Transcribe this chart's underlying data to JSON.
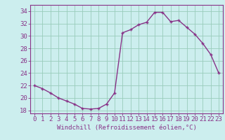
{
  "x": [
    0,
    1,
    2,
    3,
    4,
    5,
    6,
    7,
    8,
    9,
    10,
    11,
    12,
    13,
    14,
    15,
    16,
    17,
    18,
    19,
    20,
    21,
    22,
    23
  ],
  "y": [
    22,
    21.5,
    20.8,
    20.0,
    19.5,
    19.0,
    18.3,
    18.2,
    18.3,
    19.0,
    20.8,
    30.5,
    31.0,
    31.8,
    32.2,
    33.8,
    33.8,
    32.3,
    32.5,
    31.4,
    30.3,
    28.8,
    27.0,
    24.0
  ],
  "line_color": "#883388",
  "marker": "+",
  "bg_color": "#cceeee",
  "grid_color": "#99ccbb",
  "xlabel": "Windchill (Refroidissement éolien,°C)",
  "ylim": [
    17.5,
    35
  ],
  "xlim": [
    -0.5,
    23.5
  ],
  "yticks": [
    18,
    20,
    22,
    24,
    26,
    28,
    30,
    32,
    34
  ],
  "xticks": [
    0,
    1,
    2,
    3,
    4,
    5,
    6,
    7,
    8,
    9,
    10,
    11,
    12,
    13,
    14,
    15,
    16,
    17,
    18,
    19,
    20,
    21,
    22,
    23
  ],
  "axis_color": "#883388",
  "tick_label_color": "#883388",
  "xlabel_color": "#883388",
  "xlabel_fontsize": 6.5,
  "tick_fontsize": 6.5
}
